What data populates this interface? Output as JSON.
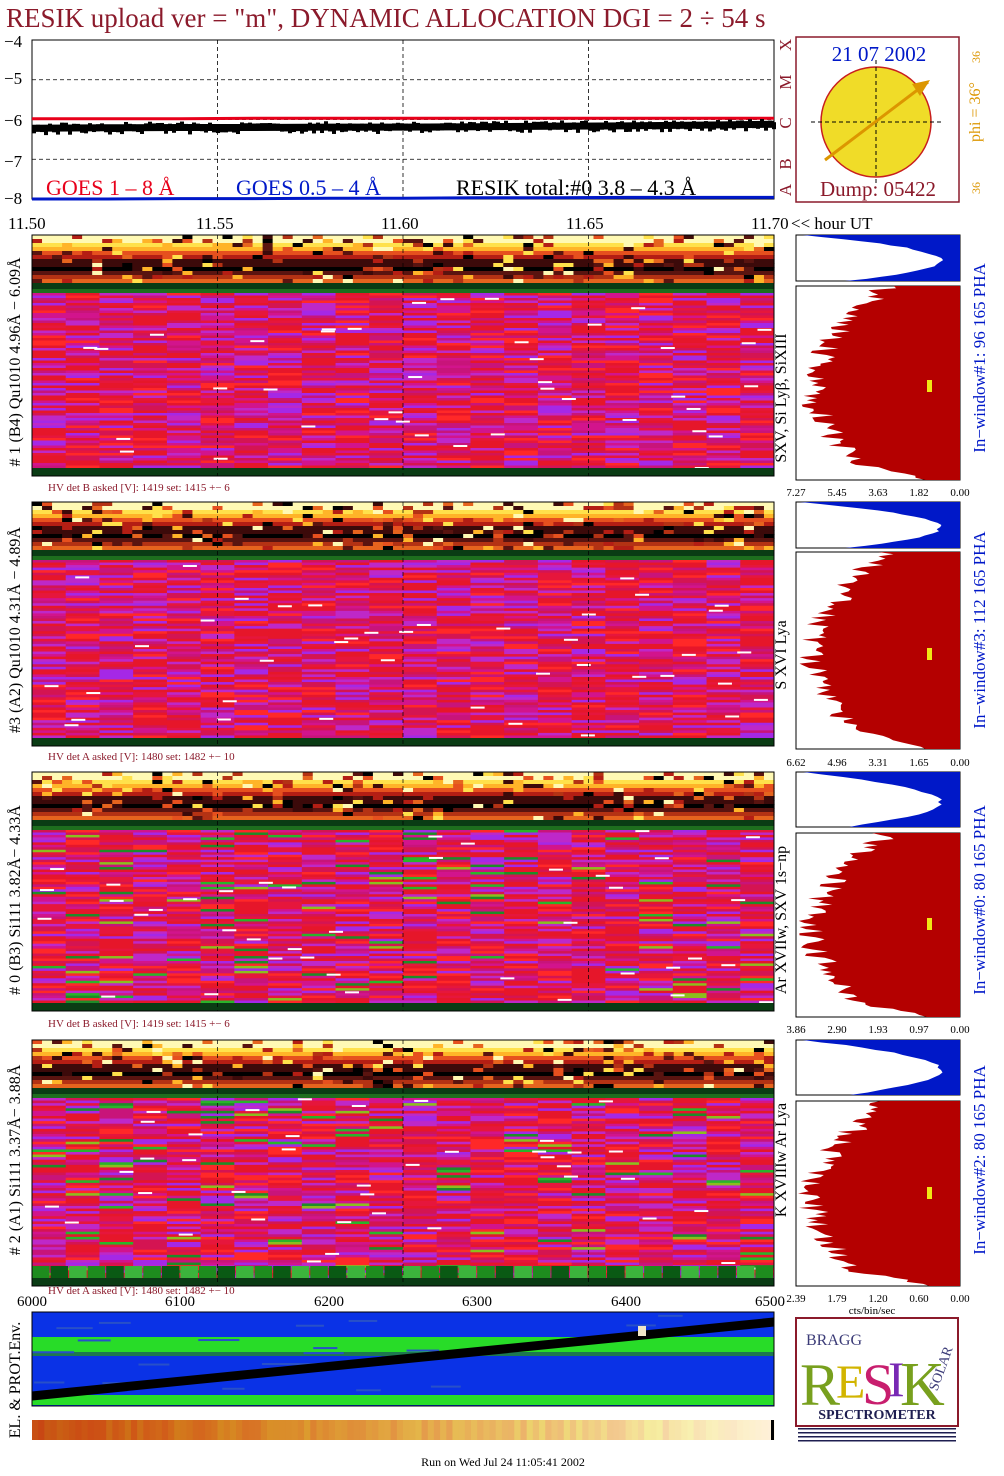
{
  "colors": {
    "title": "#8b1a2b",
    "goes_long": "#e8001a",
    "goes_short": "#0018c8",
    "resik_total": "#000000",
    "sun_disk": "#f0dc28",
    "sun_ring": "#c81e1e",
    "phi_text": "#dc9600",
    "hist_blue": "#0018c8",
    "hist_red": "#b40000",
    "label_maroon": "#8b1a2b",
    "yellow_marker": "#f0e614"
  },
  "header": {
    "title": "RESIK upload ver = \"m\", DYNAMIC ALLOCATION  DGI =   2 ÷  54 s"
  },
  "lightcurve": {
    "ytick_labels": [
      "−4",
      "−5",
      "−6",
      "−7",
      "−8"
    ],
    "flare_class_labels": [
      "X",
      "M",
      "C",
      "B",
      "A"
    ],
    "legend": [
      "GOES 1 – 8 Å",
      "GOES 0.5 – 4 Å",
      "RESIK total:#0  3.8 – 4.3 Å"
    ],
    "xtick_labels": [
      "11.50",
      "11.55",
      "11.60",
      "11.65",
      "11.70"
    ],
    "xaxis_unit": "<< hour UT"
  },
  "sun_panel": {
    "date": "21 07 2002",
    "phi": "phi = 36°",
    "phi_small": "36",
    "phi_tick": "36°",
    "dump": "Dump: 05422"
  },
  "panels": [
    {
      "left_label": "# 1 (B4) Qu1010 4.96Å − 6.09Å",
      "right_label": "SXV, Si Lyβ, SiXIII",
      "hv_text": "HV det B asked [V]:  1419 set:  1415 +−    6",
      "hist_label": "In−window#1:   96 165  PHA",
      "hist_ticks": [
        "7.27",
        "5.45",
        "3.63",
        "1.82",
        "0.00"
      ]
    },
    {
      "left_label": "#3 (A2) Qu1010  4.31Å − 4.89Å",
      "right_label": "S XVI Lya",
      "hv_text": "HV det A asked [V]:  1480 set:  1482 +−   10",
      "hist_label": "In−window#3:  112 165  PHA",
      "hist_ticks": [
        "6.62",
        "4.96",
        "3.31",
        "1.65",
        "0.00"
      ]
    },
    {
      "left_label": "# 0 (B3) Si111  3.82Å− 4.33Å",
      "right_label": "Ar XVIIw, SXV 1s−np",
      "hv_text": "HV det B asked [V]:  1419 set:  1415 +−    6",
      "hist_label": "In−window#0:   80 165  PHA",
      "hist_ticks": [
        "3.86",
        "2.90",
        "1.93",
        "0.97",
        "0.00"
      ]
    },
    {
      "left_label": "# 2 (A1) Si111  3.37Å− 3.88Å",
      "right_label": "K XVIIIw  Ar Lya",
      "hv_text": "HV det A asked [V]:  1480 set:  1482 +−   10",
      "hist_label": "In−window#2:   80 165  PHA",
      "hist_ticks": [
        "2.39",
        "1.79",
        "1.20",
        "0.60",
        "0.00"
      ]
    }
  ],
  "hist_unit": "cts/bin/sec",
  "env": {
    "label": "EL. & PROT.Env.",
    "xtick_labels": [
      "6000",
      "6100",
      "6200",
      "6300",
      "6400",
      "6500"
    ]
  },
  "logo": {
    "small1": "BRAGG",
    "small2": "SOLAR",
    "main": "RESIK",
    "caption": "SPECTROMETER"
  },
  "footer": "Run on Wed Jul 24 11:05:41 2002",
  "chart_data": [
    {
      "type": "line",
      "title": "RESIK upload ver = \"m\", DYNAMIC ALLOCATION  DGI =   2 ÷  54 s",
      "xlabel": "hour UT",
      "ylabel": "",
      "xlim": [
        11.5,
        11.7
      ],
      "ylim": [
        -8,
        -4
      ],
      "grid": true,
      "x": [
        11.5,
        11.52,
        11.54,
        11.56,
        11.58,
        11.6,
        11.62,
        11.64,
        11.66,
        11.68,
        11.7
      ],
      "series": [
        {
          "name": "GOES 1 – 8 Å",
          "values": [
            -5.98,
            -5.98,
            -5.98,
            -5.97,
            -5.97,
            -5.97,
            -5.97,
            -5.97,
            -5.97,
            -5.97,
            -5.97
          ]
        },
        {
          "name": "GOES 0.5 – 4 Å",
          "values": [
            -8.0,
            -8.0,
            -7.99,
            -7.99,
            -7.98,
            -7.98,
            -7.97,
            -7.97,
            -7.96,
            -7.96,
            -7.96
          ]
        },
        {
          "name": "RESIK total:#0  3.8 – 4.3 Å",
          "values": [
            -6.22,
            -6.21,
            -6.2,
            -6.2,
            -6.19,
            -6.19,
            -6.18,
            -6.17,
            -6.16,
            -6.14,
            -6.12
          ]
        }
      ]
    },
    {
      "type": "heatmap",
      "title": "# 1 (B4) Qu1010 4.96Å − 6.09Å",
      "x_unit": "hour UT",
      "xlim": [
        11.5,
        11.7
      ]
    },
    {
      "type": "heatmap",
      "title": "#3 (A2) Qu1010  4.31Å − 4.89Å",
      "x_unit": "hour UT",
      "xlim": [
        11.5,
        11.7
      ]
    },
    {
      "type": "heatmap",
      "title": "# 0 (B3) Si111  3.82Å− 4.33Å",
      "x_unit": "hour UT",
      "xlim": [
        11.5,
        11.7
      ]
    },
    {
      "type": "heatmap",
      "title": "# 2 (A1) Si111  3.37Å− 3.88Å",
      "x_unit": "hour UT",
      "xlim": [
        11.5,
        11.7
      ]
    },
    {
      "type": "area",
      "title": "In−window#1:   96 165  PHA",
      "xlabel": "cts/bin/sec",
      "xlim": [
        7.27,
        0.0
      ],
      "xticks": [
        7.27,
        5.45,
        3.63,
        1.82,
        0.0
      ]
    },
    {
      "type": "area",
      "title": "In−window#3:  112 165  PHA",
      "xlabel": "cts/bin/sec",
      "xlim": [
        6.62,
        0.0
      ],
      "xticks": [
        6.62,
        4.96,
        3.31,
        1.65,
        0.0
      ]
    },
    {
      "type": "area",
      "title": "In−window#0:   80 165  PHA",
      "xlabel": "cts/bin/sec",
      "xlim": [
        3.86,
        0.0
      ],
      "xticks": [
        3.86,
        2.9,
        1.93,
        0.97,
        0.0
      ]
    },
    {
      "type": "area",
      "title": "In−window#2:   80 165  PHA",
      "xlabel": "cts/bin/sec",
      "xlim": [
        2.39,
        0.0
      ],
      "xticks": [
        2.39,
        1.79,
        1.2,
        0.6,
        0.0
      ]
    },
    {
      "type": "line",
      "title": "EL. & PROT.Env.",
      "xlim": [
        6000,
        6500
      ],
      "xticks": [
        6000,
        6100,
        6200,
        6300,
        6400,
        6500
      ]
    }
  ]
}
